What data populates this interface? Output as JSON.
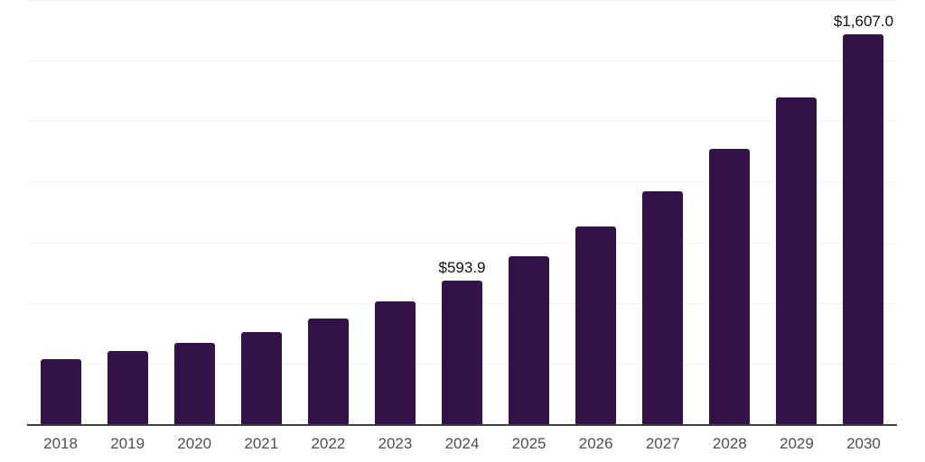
{
  "chart_data": {
    "type": "bar",
    "title": "",
    "xlabel": "",
    "ylabel": "",
    "categories": [
      "2018",
      "2019",
      "2020",
      "2021",
      "2022",
      "2023",
      "2024",
      "2025",
      "2026",
      "2027",
      "2028",
      "2029",
      "2030"
    ],
    "values": [
      270,
      300,
      335,
      380,
      436,
      506,
      593.9,
      692,
      815,
      960,
      1135,
      1348,
      1607
    ],
    "value_labels": [
      "",
      "",
      "",
      "",
      "",
      "",
      "$593.9",
      "",
      "",
      "",
      "",
      "",
      "$1,607.0"
    ],
    "ylim": [
      0,
      1750
    ],
    "grid_step": 250,
    "grid": "horizontal-only",
    "legend": "none",
    "bar_color": "#33124a",
    "grid_color": "#f2f2f2",
    "axis_line_color": "#3d3d3d",
    "tick_label_color": "#4f4f4f",
    "data_label_color": "#111111"
  }
}
